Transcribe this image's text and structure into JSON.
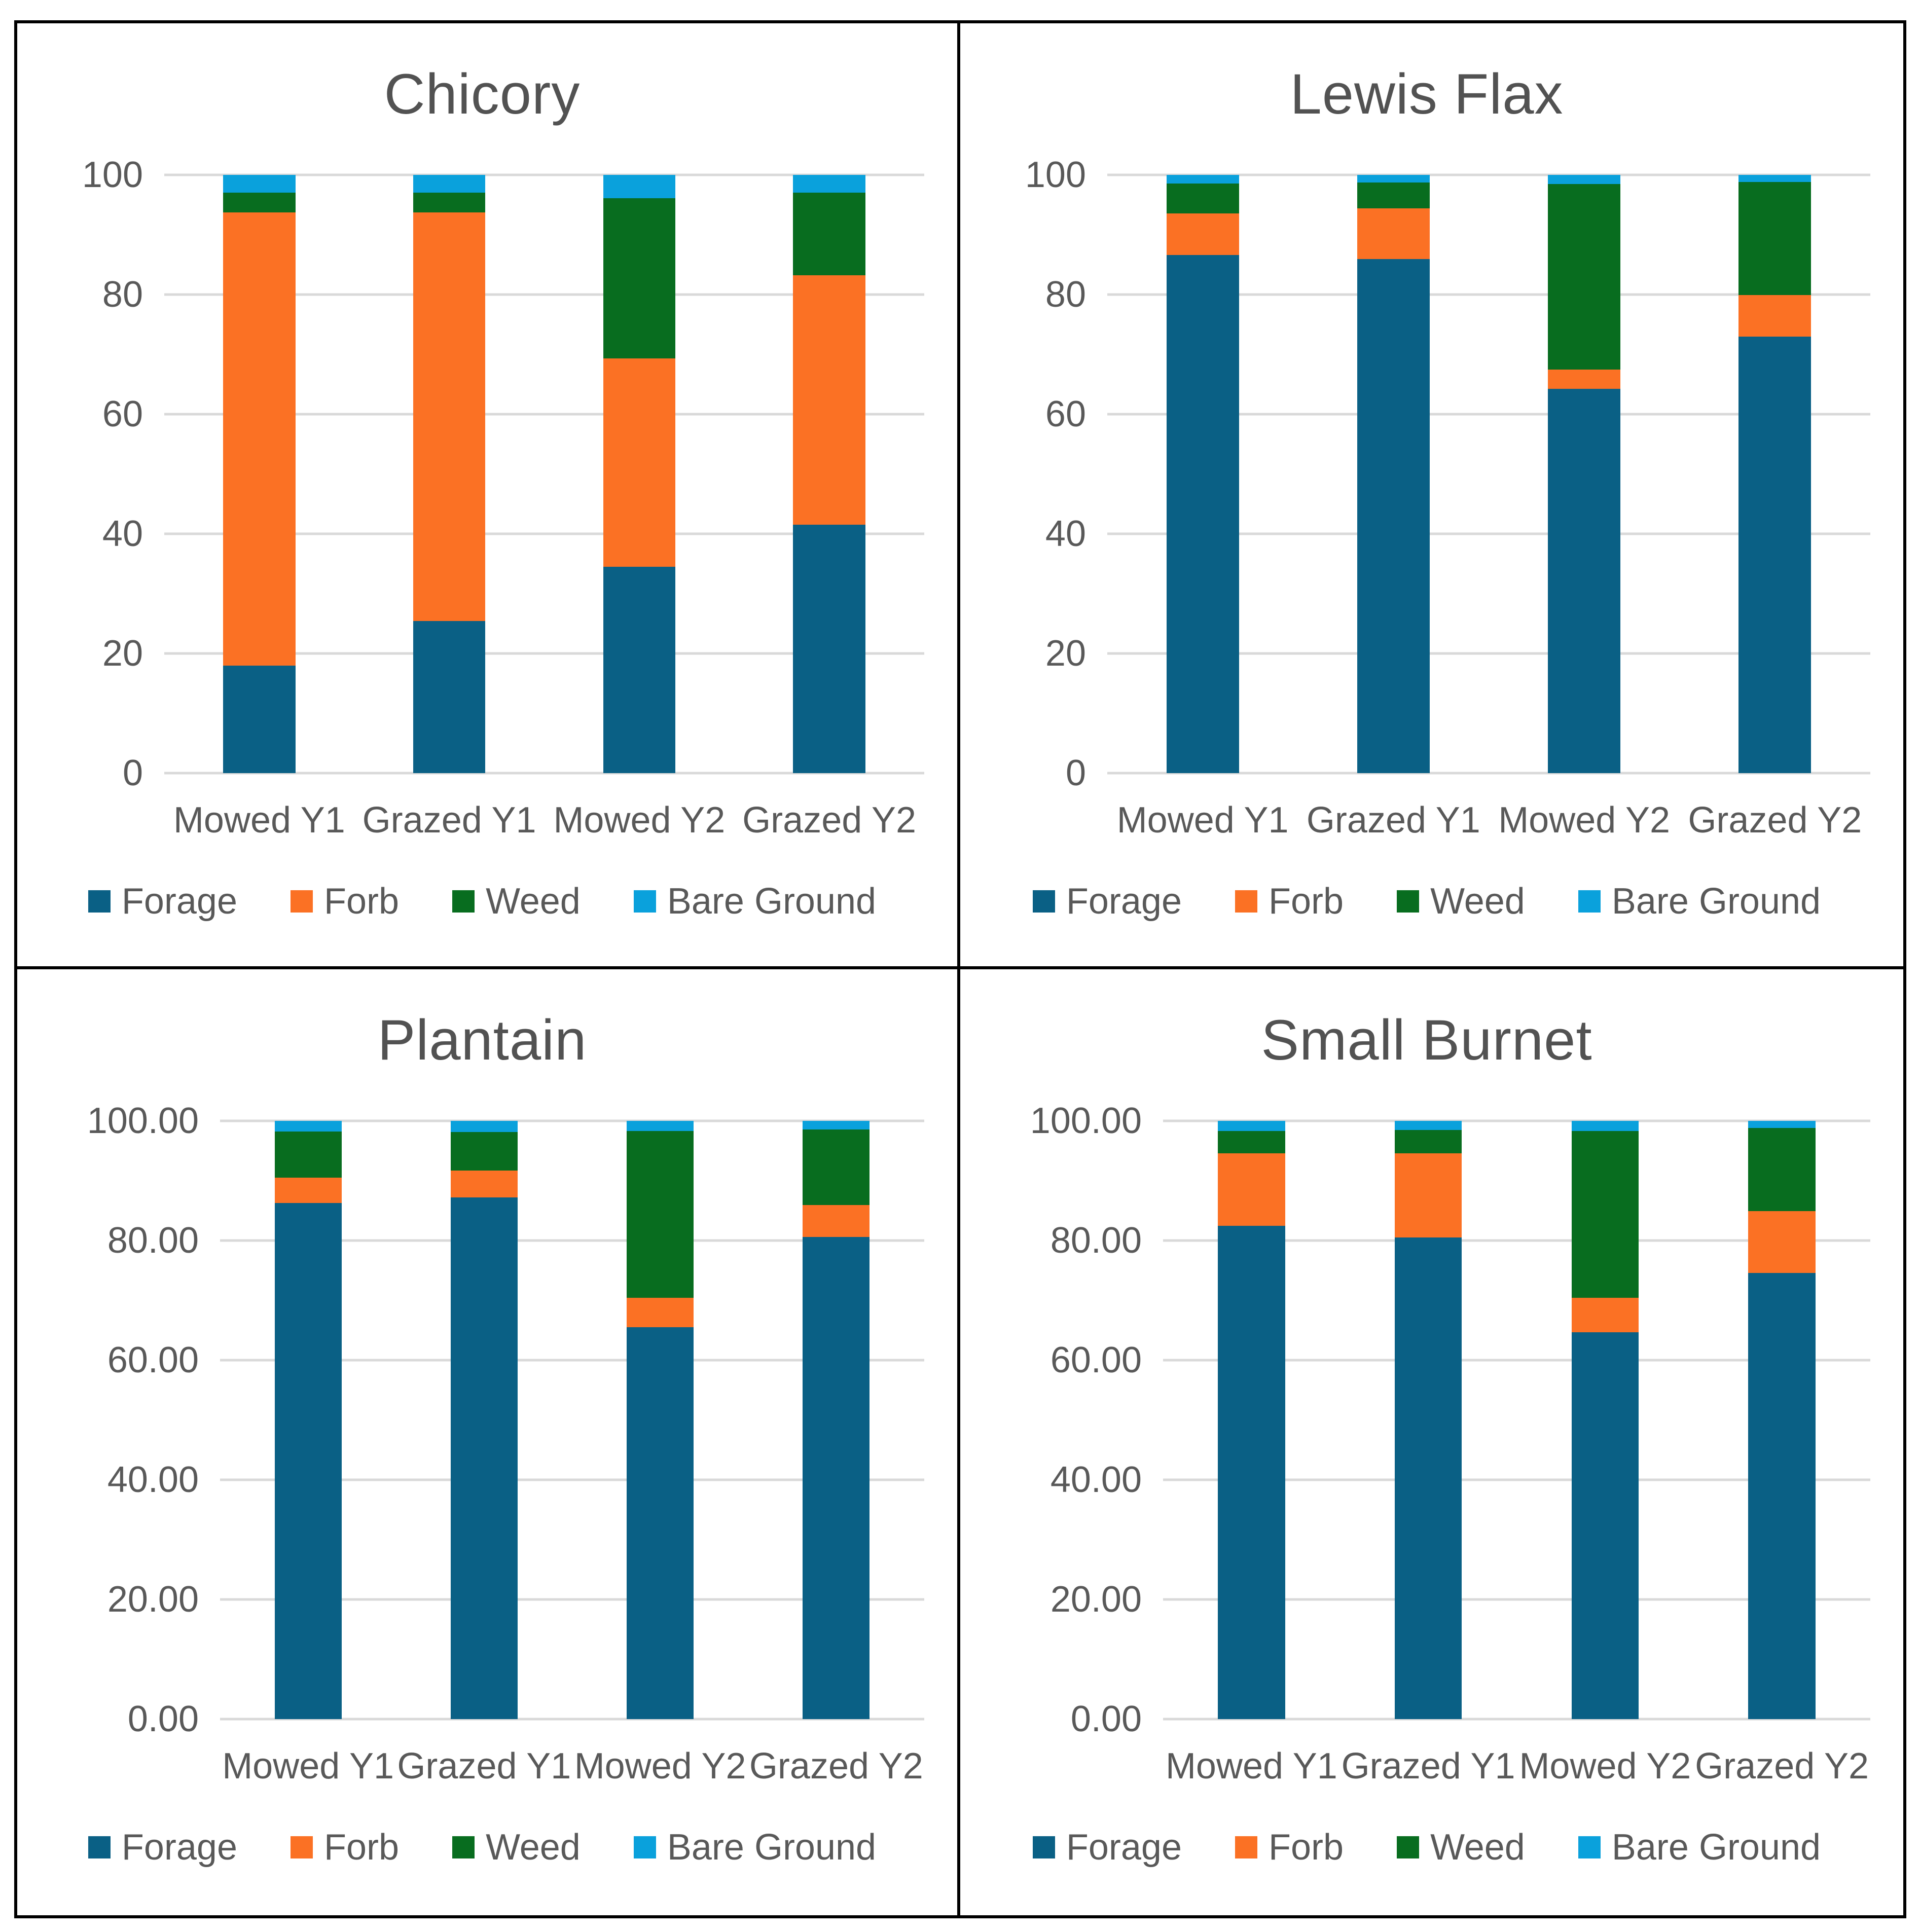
{
  "page": {
    "background": "#ffffff",
    "border_color": "#000000",
    "gridline_color": "#D9D9D9",
    "text_color": "#595959",
    "title_color": "#525252"
  },
  "series_colors": {
    "Forage": "#0A6085",
    "Forb": "#FB7124",
    "Weed": "#086D1F",
    "Bare Ground": "#0AA1DC"
  },
  "chart_data": [
    {
      "type": "bar",
      "stacked": true,
      "title": "Chicory",
      "categories": [
        "Mowed Y1",
        "Grazed Y1",
        "Mowed Y2",
        "Grazed Y2"
      ],
      "series": [
        {
          "name": "Forage",
          "color": "#0A6085",
          "values": [
            18.0,
            25.4,
            34.5,
            41.5
          ]
        },
        {
          "name": "Forb",
          "color": "#FB7124",
          "values": [
            75.7,
            68.3,
            34.8,
            41.7
          ]
        },
        {
          "name": "Weed",
          "color": "#086D1F",
          "values": [
            3.3,
            3.3,
            26.8,
            13.8
          ]
        },
        {
          "name": "Bare Ground",
          "color": "#0AA1DC",
          "values": [
            3.0,
            3.0,
            3.9,
            3.0
          ]
        }
      ],
      "ylim": [
        0,
        100
      ],
      "ytick_labels": [
        "100",
        "80",
        "60",
        "40",
        "20",
        "0"
      ],
      "grid": true,
      "legend_position": "bottom",
      "legend_labels": [
        "Forage",
        "Forb",
        "Weed",
        "Bare Ground"
      ]
    },
    {
      "type": "bar",
      "stacked": true,
      "title": "Lewis Flax",
      "categories": [
        "Mowed Y1",
        "Grazed Y1",
        "Mowed Y2",
        "Grazed Y2"
      ],
      "series": [
        {
          "name": "Forage",
          "color": "#0A6085",
          "values": [
            86.6,
            85.9,
            64.2,
            73.0
          ]
        },
        {
          "name": "Forb",
          "color": "#FB7124",
          "values": [
            7.0,
            8.5,
            3.3,
            6.9
          ]
        },
        {
          "name": "Weed",
          "color": "#086D1F",
          "values": [
            5.0,
            4.3,
            31.0,
            18.9
          ]
        },
        {
          "name": "Bare Ground",
          "color": "#0AA1DC",
          "values": [
            1.4,
            1.3,
            1.5,
            1.2
          ]
        }
      ],
      "ylim": [
        0,
        100
      ],
      "ytick_labels": [
        "100",
        "80",
        "60",
        "40",
        "20",
        "0"
      ],
      "grid": true,
      "legend_position": "bottom",
      "legend_labels": [
        "Forage",
        "Forb",
        "Weed",
        "Bare Ground"
      ]
    },
    {
      "type": "bar",
      "stacked": true,
      "title": "Plantain",
      "categories": [
        "Mowed Y1",
        "Grazed Y1",
        "Mowed Y2",
        "Grazed Y2"
      ],
      "series": [
        {
          "name": "Forage",
          "color": "#0A6085",
          "values": [
            86.3,
            87.2,
            65.5,
            80.6
          ]
        },
        {
          "name": "Forb",
          "color": "#FB7124",
          "values": [
            4.2,
            4.5,
            4.9,
            5.3
          ]
        },
        {
          "name": "Weed",
          "color": "#086D1F",
          "values": [
            7.7,
            6.4,
            27.9,
            12.7
          ]
        },
        {
          "name": "Bare Ground",
          "color": "#0AA1DC",
          "values": [
            1.8,
            1.9,
            1.7,
            1.4
          ]
        }
      ],
      "ylim": [
        0,
        100
      ],
      "ytick_labels": [
        "100.00",
        "80.00",
        "60.00",
        "40.00",
        "20.00",
        "0.00"
      ],
      "grid": true,
      "legend_position": "bottom",
      "legend_labels": [
        "Forage",
        "Forb",
        "Weed",
        "Bare Ground"
      ]
    },
    {
      "type": "bar",
      "stacked": true,
      "title": "Small Burnet",
      "categories": [
        "Mowed Y1",
        "Grazed Y1",
        "Mowed Y2",
        "Grazed Y2"
      ],
      "series": [
        {
          "name": "Forage",
          "color": "#0A6085",
          "values": [
            82.5,
            80.5,
            64.7,
            74.6
          ]
        },
        {
          "name": "Forb",
          "color": "#FB7124",
          "values": [
            12.1,
            14.1,
            5.7,
            10.3
          ]
        },
        {
          "name": "Weed",
          "color": "#086D1F",
          "values": [
            3.7,
            3.9,
            27.9,
            13.9
          ]
        },
        {
          "name": "Bare Ground",
          "color": "#0AA1DC",
          "values": [
            1.7,
            1.5,
            1.7,
            1.2
          ]
        }
      ],
      "ylim": [
        0,
        100
      ],
      "ytick_labels": [
        "100.00",
        "80.00",
        "60.00",
        "40.00",
        "20.00",
        "0.00"
      ],
      "grid": true,
      "legend_position": "bottom",
      "legend_labels": [
        "Forage",
        "Forb",
        "Weed",
        "Bare Ground"
      ]
    }
  ]
}
